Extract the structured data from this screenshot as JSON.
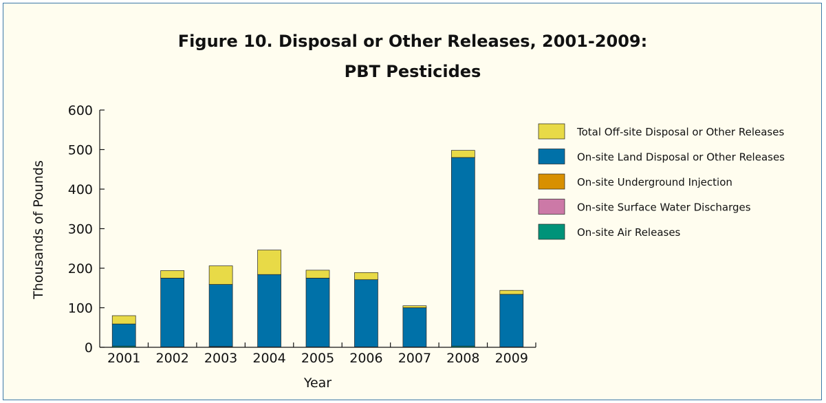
{
  "chart_data": {
    "type": "bar",
    "stacked": true,
    "title": "Figure 10. Disposal or Other Releases, 2001-2009:",
    "subtitle": "PBT Pesticides",
    "xlabel": "Year",
    "ylabel": "Thousands of Pounds",
    "ylim": [
      0,
      600
    ],
    "yticks": [
      0,
      100,
      200,
      300,
      400,
      500,
      600
    ],
    "categories": [
      "2001",
      "2002",
      "2003",
      "2004",
      "2005",
      "2006",
      "2007",
      "2008",
      "2009"
    ],
    "legend_position": "right",
    "grid": false,
    "series": [
      {
        "name": "On-site Air Releases",
        "color": "#009379",
        "values": [
          3,
          1,
          1,
          1,
          1,
          1,
          1,
          3,
          1
        ]
      },
      {
        "name": "On-site Surface Water Discharges",
        "color": "#cc79a7",
        "values": [
          0,
          0,
          1,
          0,
          0,
          0,
          0,
          0,
          0
        ]
      },
      {
        "name": "On-site Underground Injection",
        "color": "#d89000",
        "values": [
          0,
          0,
          0,
          0,
          0,
          0,
          0,
          0,
          0
        ]
      },
      {
        "name": "On-site Land Disposal or Other Releases",
        "color": "#0071a8",
        "values": [
          56,
          174,
          157,
          183,
          174,
          170,
          99,
          477,
          133
        ]
      },
      {
        "name": "Total Off-site Disposal or Other Releases",
        "color": "#e8da47",
        "values": [
          21,
          19,
          47,
          62,
          20,
          18,
          5,
          18,
          10
        ]
      }
    ],
    "legend_order": [
      "Total Off-site Disposal or Other Releases",
      "On-site Land Disposal or Other Releases",
      "On-site Underground Injection",
      "On-site Surface Water Discharges",
      "On-site Air Releases"
    ]
  }
}
